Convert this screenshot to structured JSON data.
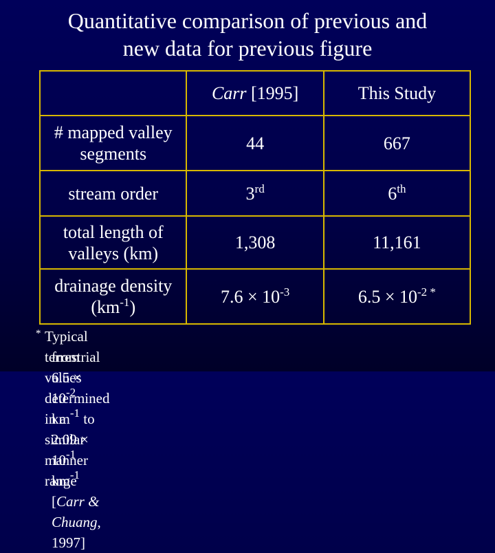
{
  "title": {
    "lines": [
      "Quantitative comparison of previous and",
      "new data for previous figure"
    ]
  },
  "table": {
    "header": [
      [],
      [
        {
          "text": "Carr",
          "italic": true
        },
        {
          "text": " [1995]"
        }
      ],
      [
        {
          "text": "This Study"
        }
      ]
    ],
    "rows": [
      [
        [
          {
            "text": "# mapped valley segments"
          }
        ],
        [
          {
            "text": "44"
          }
        ],
        [
          {
            "text": "667"
          }
        ]
      ],
      [
        [
          {
            "text": "stream order"
          }
        ],
        [
          {
            "text": "3"
          },
          {
            "text": "rd",
            "sup": true
          }
        ],
        [
          {
            "text": "6"
          },
          {
            "text": "th",
            "sup": true
          }
        ]
      ],
      [
        [
          {
            "text": "total length of valleys (km)"
          }
        ],
        [
          {
            "text": "1,308"
          }
        ],
        [
          {
            "text": "11,161"
          }
        ]
      ],
      [
        [
          {
            "text": "drainage density (km"
          },
          {
            "text": "-1",
            "sup": true
          },
          {
            "text": ")"
          }
        ],
        [
          {
            "text": "7.6 × 10"
          },
          {
            "text": "-3",
            "sup": true
          }
        ],
        [
          {
            "text": "6.5 × 10"
          },
          {
            "text": "-2 *",
            "sup": true
          }
        ]
      ]
    ]
  },
  "footnote": {
    "marker": "*",
    "lines": [
      [
        {
          "text": "Typical terrestrial values determined in a similar manner range"
        }
      ],
      [
        {
          "text": "from 6.5 × 10"
        },
        {
          "text": "-2",
          "sup": true
        },
        {
          "text": " km"
        },
        {
          "text": "-1",
          "sup": true
        },
        {
          "text": " to 2.09 × 10"
        },
        {
          "text": "-1",
          "sup": true
        },
        {
          "text": " km"
        },
        {
          "text": "-1",
          "sup": true
        },
        {
          "text": " ["
        },
        {
          "text": "Carr & Chuang",
          "italic": true
        },
        {
          "text": ", 1997]"
        }
      ]
    ]
  }
}
